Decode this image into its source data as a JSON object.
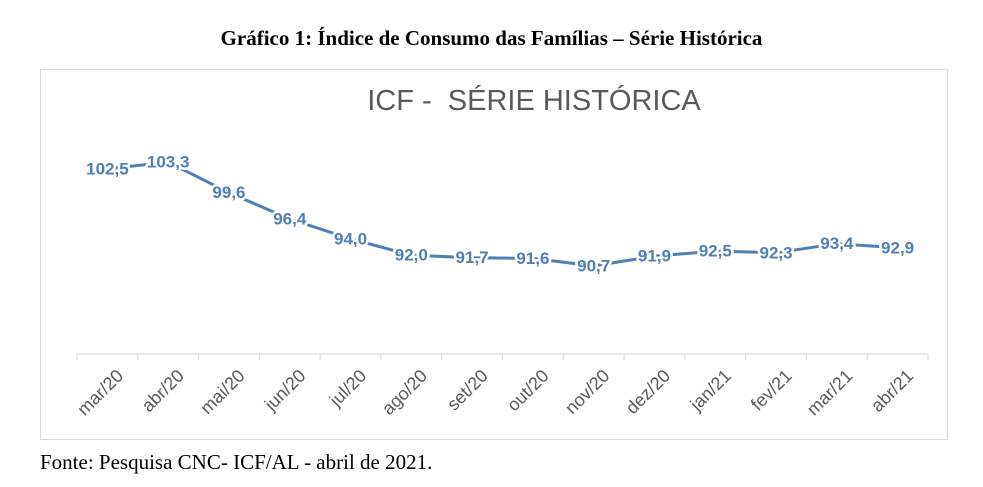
{
  "figure": {
    "caption": "Gráfico 1: Índice de Consumo das Famílias – Série Histórica",
    "source": "Fonte: Pesquisa CNC- ICF/AL - abril de 2021."
  },
  "chart_data": {
    "type": "line",
    "title": "ICF -  SÉRIE HISTÓRICA",
    "xlabel": "",
    "ylabel": "",
    "categories": [
      "mar/20",
      "abr/20",
      "mai/20",
      "jun/20",
      "jul/20",
      "ago/20",
      "set/20",
      "out/20",
      "nov/20",
      "dez/20",
      "jan/21",
      "fev/21",
      "mar/21",
      "abr/21"
    ],
    "series": [
      {
        "values": [
          102.5,
          103.3,
          99.6,
          96.4,
          94.0,
          92.0,
          91.7,
          91.6,
          90.7,
          91.9,
          92.5,
          92.3,
          93.4,
          92.9
        ],
        "labels": [
          "102,5",
          "103,3",
          "99,6",
          "96,4",
          "94,0",
          "92,0",
          "91,7",
          "91,6",
          "90,7",
          "91,9",
          "92,5",
          "92,3",
          "93,4",
          "92,9"
        ]
      }
    ],
    "ylim": [
      80,
      106
    ],
    "grid": false,
    "legend": "none",
    "colors": {
      "line": "#4e7fb5",
      "label": "#4e7fb5",
      "title": "#595959",
      "axis": "#d9d9d9",
      "tick_label": "#595959"
    }
  }
}
